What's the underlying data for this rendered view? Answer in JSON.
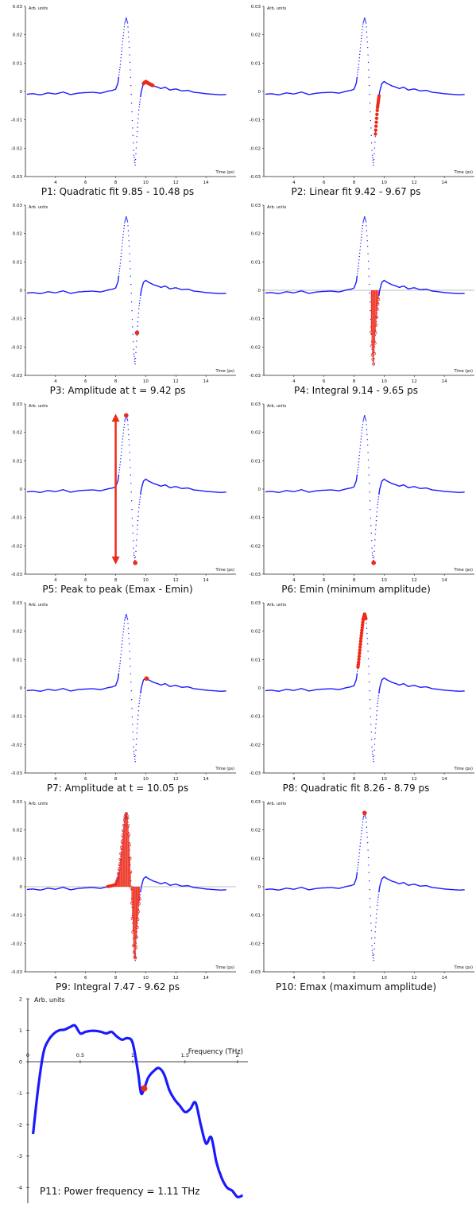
{
  "pulse_template": [
    [
      2.0,
      -0.001
    ],
    [
      2.5,
      -0.0008
    ],
    [
      3.0,
      -0.0012
    ],
    [
      3.5,
      -0.0005
    ],
    [
      4.0,
      -0.0009
    ],
    [
      4.5,
      -0.0002
    ],
    [
      5.0,
      -0.0011
    ],
    [
      5.5,
      -0.0006
    ],
    [
      6.0,
      -0.0004
    ],
    [
      6.5,
      -0.0003
    ],
    [
      7.0,
      -0.0006
    ],
    [
      7.5,
      0.0001
    ],
    [
      7.8,
      0.0004
    ],
    [
      8.0,
      0.0008
    ],
    [
      8.15,
      0.003
    ],
    [
      8.3,
      0.009
    ],
    [
      8.45,
      0.017
    ],
    [
      8.6,
      0.024
    ],
    [
      8.7,
      0.026
    ],
    [
      8.8,
      0.024
    ],
    [
      8.9,
      0.016
    ],
    [
      9.0,
      0.004
    ],
    [
      9.1,
      -0.01
    ],
    [
      9.2,
      -0.022
    ],
    [
      9.3,
      -0.026
    ],
    [
      9.42,
      -0.015
    ],
    [
      9.55,
      -0.006
    ],
    [
      9.7,
      0.0
    ],
    [
      9.85,
      0.0028
    ],
    [
      10.0,
      0.0035
    ],
    [
      10.2,
      0.0028
    ],
    [
      10.5,
      0.002
    ],
    [
      10.8,
      0.0015
    ],
    [
      11.0,
      0.001
    ],
    [
      11.3,
      0.0015
    ],
    [
      11.6,
      0.0005
    ],
    [
      12.0,
      0.0009
    ],
    [
      12.4,
      0.0002
    ],
    [
      12.8,
      0.0004
    ],
    [
      13.2,
      -0.0003
    ],
    [
      13.6,
      -0.0005
    ],
    [
      14.0,
      -0.0008
    ],
    [
      14.5,
      -0.001
    ],
    [
      15.0,
      -0.0012
    ],
    [
      15.5,
      -0.001
    ]
  ],
  "panels": [
    {
      "caption": "P1: Quadratic fit 9.85 - 10.48 ps",
      "highlight": {
        "kind": "segment",
        "from": 9.85,
        "to": 10.48
      }
    },
    {
      "caption": "P2: Linear fit 9.42 - 9.67 ps",
      "highlight": {
        "kind": "segment",
        "from": 9.42,
        "to": 9.67
      }
    },
    {
      "caption": "P3: Amplitude at t = 9.42 ps",
      "highlight": {
        "kind": "point",
        "t": 9.42,
        "v": -0.015
      }
    },
    {
      "caption": "P4: Integral 9.14 - 9.65 ps",
      "highlight": {
        "kind": "integral",
        "from": 9.14,
        "to": 9.65
      }
    },
    {
      "caption": "P5: Peak to peak (Emax - Emin)",
      "highlight": {
        "kind": "peak-to-peak",
        "tmax": 8.7,
        "vmax": 0.026,
        "tmin": 9.3,
        "vmin": -0.026,
        "arrow_t": 8.0
      }
    },
    {
      "caption": "P6: Emin (minimum amplitude)",
      "highlight": {
        "kind": "point",
        "t": 9.3,
        "v": -0.026
      }
    },
    {
      "caption": "P7: Amplitude at t = 10.05 ps",
      "highlight": {
        "kind": "point",
        "t": 10.05,
        "v": 0.0033
      }
    },
    {
      "caption": "P8: Quadratic fit 8.26 - 8.79 ps",
      "highlight": {
        "kind": "segment",
        "from": 8.26,
        "to": 8.79
      }
    },
    {
      "caption": "P9: Integral 7.47 - 9.62 ps",
      "highlight": {
        "kind": "integral",
        "from": 7.47,
        "to": 9.62
      }
    },
    {
      "caption": "P10: Emax (maximum amplitude)",
      "highlight": {
        "kind": "point",
        "t": 8.7,
        "v": 0.026
      }
    }
  ],
  "small_axes": {
    "ylabel": "Arb. units",
    "xlabel": "Time (ps)",
    "xlim": [
      2,
      16
    ],
    "ylim": [
      -0.03,
      0.03
    ],
    "xticks": [
      "4",
      "6",
      "8",
      "10",
      "12",
      "14"
    ],
    "yticks": [
      "0.03",
      "0.02",
      "0.01",
      "0",
      "-0.01",
      "-0.02",
      "-0.03"
    ]
  },
  "chart_data": {
    "type": "line",
    "title": "",
    "xlabel": "Frequency (THz)",
    "ylabel": "Arb. units",
    "xlim": [
      0,
      2.1
    ],
    "ylim": [
      -4.5,
      2
    ],
    "xticks": [
      "0",
      "0.5",
      "1",
      "1.5",
      "2"
    ],
    "yticks": [
      "2",
      "1",
      "0",
      "-1",
      "-2",
      "-3",
      "-4"
    ],
    "series": [
      {
        "x": [
          0.05,
          0.1,
          0.15,
          0.2,
          0.25,
          0.3,
          0.35,
          0.4,
          0.45,
          0.5,
          0.55,
          0.6,
          0.65,
          0.7,
          0.75,
          0.8,
          0.85,
          0.9,
          0.95,
          1.0,
          1.05,
          1.08,
          1.11,
          1.15,
          1.2,
          1.25,
          1.3,
          1.35,
          1.4,
          1.45,
          1.5,
          1.55,
          1.6,
          1.65,
          1.7,
          1.75,
          1.8,
          1.85,
          1.9,
          1.95,
          2.0,
          2.05
        ],
        "values": [
          -2.3,
          -0.8,
          0.3,
          0.7,
          0.9,
          1.0,
          1.02,
          1.1,
          1.15,
          0.9,
          0.95,
          0.98,
          0.98,
          0.95,
          0.9,
          0.95,
          0.8,
          0.7,
          0.75,
          0.6,
          -0.3,
          -1.0,
          -0.85,
          -0.5,
          -0.3,
          -0.2,
          -0.4,
          -0.9,
          -1.2,
          -1.4,
          -1.6,
          -1.5,
          -1.3,
          -2.0,
          -2.6,
          -2.4,
          -3.2,
          -3.7,
          -4.0,
          -4.1,
          -4.3,
          -4.25
        ]
      }
    ],
    "marker": {
      "x": 1.11,
      "y": -0.85
    },
    "caption": "P11: Power frequency = 1.11 THz"
  },
  "colors": {
    "trace": "#1a1aff",
    "highlight": "#ee2a18",
    "axis": "#222222",
    "zero_line": "#aaaaaa"
  }
}
